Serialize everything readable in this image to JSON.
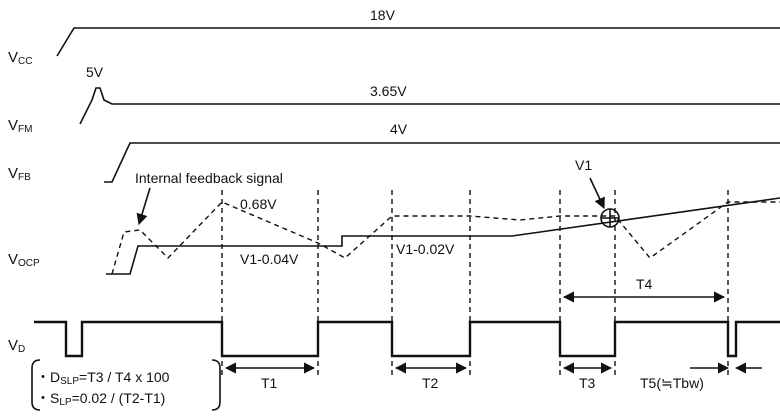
{
  "signals": {
    "vcc": {
      "main": "V",
      "sub": "CC"
    },
    "vfm": {
      "main": "V",
      "sub": "FM"
    },
    "vfb": {
      "main": "V",
      "sub": "FB"
    },
    "vocp": {
      "main": "V",
      "sub": "OCP"
    },
    "vd": {
      "main": "V",
      "sub": "D"
    }
  },
  "levels": {
    "vcc": "18V",
    "vfm_peak": "5V",
    "vfm": "3.65V",
    "vfb": "4V",
    "ocp_peak": "0.68V"
  },
  "annotations": {
    "internal_feedback": "Internal feedback signal",
    "v1": "V1",
    "v1_minus_004": "V1-0.04V",
    "v1_minus_002": "V1-0.02V"
  },
  "intervals": {
    "t1": "T1",
    "t2": "T2",
    "t3": "T3",
    "t4": "T4",
    "t5": "T5(≒Tbw)"
  },
  "formulas": {
    "dslp": {
      "bullet": "・",
      "main": "D",
      "sub": "SLP",
      "rest": "=T3 / T4 x 100"
    },
    "slp": {
      "bullet": "・",
      "main": "S",
      "sub": "LP",
      "rest": "=0.02 / (T2-T1)"
    }
  }
}
